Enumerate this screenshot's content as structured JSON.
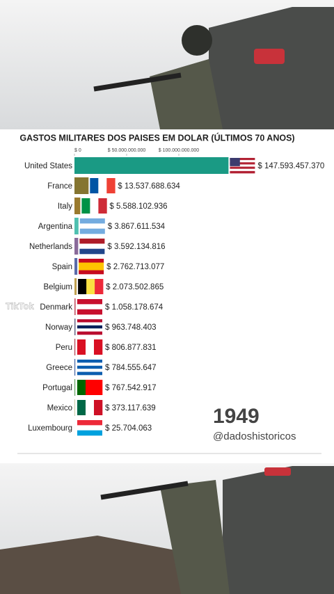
{
  "chart_data": {
    "type": "bar",
    "orientation": "horizontal",
    "title": "GASTOS MILITARES DOS PAISES EM DOLAR (ÚLTIMOS 70 ANOS)",
    "categories": [
      "United States",
      "France",
      "Italy",
      "Argentina",
      "Netherlands",
      "Spain",
      "Belgium",
      "Denmark",
      "Norway",
      "Peru",
      "Greece",
      "Portugal",
      "Mexico",
      "Luxembourg"
    ],
    "values": [
      147593457370,
      13537688634,
      5588102936,
      3867611534,
      3592134816,
      2762713077,
      2073502865,
      1058178674,
      963748403,
      806877831,
      784555647,
      767542917,
      373117639,
      25704063
    ],
    "value_labels": [
      "$ 147.593.457.370",
      "$ 13.537.688.634",
      "$ 5.588.102.936",
      "$ 3.867.611.534",
      "$ 3.592.134.816",
      "$ 2.762.713.077",
      "$ 2.073.502.865",
      "$ 1.058.178.674",
      "$ 963.748.403",
      "$ 806.877.831",
      "$ 784.555.647",
      "$ 767.542.917",
      "$ 373.117.639",
      "$ 25.704.063"
    ],
    "colors": [
      "#1a9a84",
      "#857530",
      "#9a7a2e",
      "#4fc0b0",
      "#8a6a9a",
      "#5a6aa8",
      "#c0a050",
      "#c05060",
      "#606080",
      "#b04050",
      "#4060a0",
      "#60a060",
      "#a0a060",
      "#80c0d0"
    ],
    "xlim": [
      0,
      150000000000
    ],
    "xticks": [
      {
        "value": 0,
        "label": "$ 0"
      },
      {
        "value": 50000000000,
        "label": "$ 50.000.000.000"
      },
      {
        "value": 100000000000,
        "label": "$ 100.000.000.000"
      }
    ],
    "year": "1949",
    "handle": "@dadoshistoricos",
    "watermark": "TikTok"
  }
}
